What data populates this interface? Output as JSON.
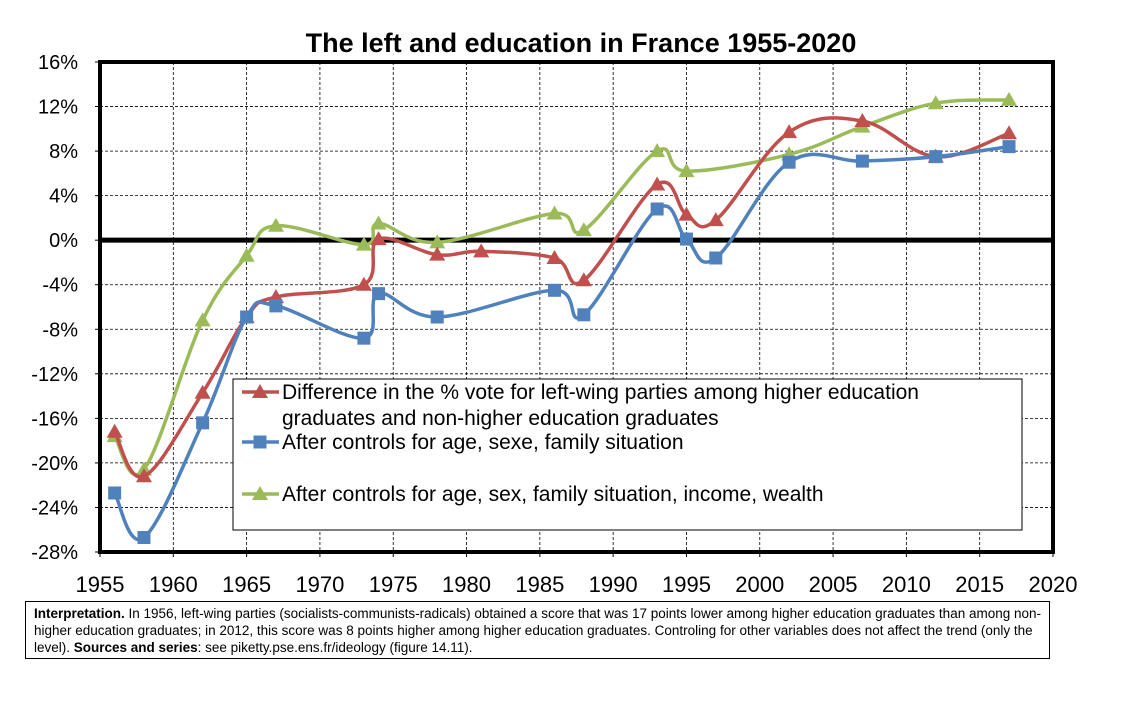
{
  "chart_data": {
    "type": "line",
    "title": "The left and education in France 1955-2020",
    "xlim": [
      1955,
      2020
    ],
    "ylim": [
      -28,
      16
    ],
    "x_ticks": [
      1955,
      1960,
      1965,
      1970,
      1975,
      1980,
      1985,
      1990,
      1995,
      2000,
      2005,
      2010,
      2015,
      2020
    ],
    "y_ticks": [
      -28,
      -24,
      -20,
      -16,
      -12,
      -8,
      -4,
      0,
      4,
      8,
      12,
      16
    ],
    "y_tick_labels": [
      "-28%",
      "-24%",
      "-20%",
      "-16%",
      "-12%",
      "-8%",
      "-4%",
      "0%",
      "4%",
      "8%",
      "12%",
      "16%"
    ],
    "x_tick_labels": [
      "1955",
      "1960",
      "1965",
      "1970",
      "1975",
      "1980",
      "1985",
      "1990",
      "1995",
      "2000",
      "2005",
      "2010",
      "2015",
      "2020"
    ],
    "grid": "dashed",
    "zero_line": true,
    "legend_position": "bottom-center",
    "series": [
      {
        "name": "Difference in the % vote for left-wing parties among higher education graduates and non-higher education graduates",
        "legend_lines": [
          "Difference in the % vote for left-wing parties among higher education",
          "graduates and non-higher education graduates"
        ],
        "color": "#C0504D",
        "marker": "triangle",
        "x": [
          1956,
          1958,
          1962,
          1965,
          1967,
          1973,
          1974,
          1978,
          1981,
          1986,
          1988,
          1993,
          1995,
          1997,
          2002,
          2007,
          2012,
          2017
        ],
        "y": [
          -17.2,
          -21.2,
          -13.7,
          -6.9,
          -5.1,
          -4.0,
          0.1,
          -1.3,
          -1.0,
          -1.6,
          -3.6,
          5.0,
          2.3,
          1.8,
          9.7,
          10.7,
          7.5,
          9.6
        ]
      },
      {
        "name": "After controls for age, sexe, family situation",
        "legend_lines": [
          "After controls for age, sexe, family situation"
        ],
        "color": "#4F81BD",
        "marker": "square",
        "x": [
          1956,
          1958,
          1962,
          1965,
          1967,
          1973,
          1974,
          1978,
          1986,
          1988,
          1993,
          1995,
          1997,
          2002,
          2007,
          2012,
          2017
        ],
        "y": [
          -22.7,
          -26.7,
          -16.4,
          -6.9,
          -5.9,
          -8.8,
          -4.8,
          -6.9,
          -4.5,
          -6.7,
          2.8,
          0.1,
          -1.6,
          7.0,
          7.1,
          7.5,
          8.4
        ]
      },
      {
        "name": "After controls for age, sex, family situation, income, wealth",
        "legend_lines": [
          "After controls for age, sex, family situation, income, wealth"
        ],
        "color": "#9BBB59",
        "marker": "triangle",
        "x": [
          1956,
          1958,
          1962,
          1965,
          1967,
          1973,
          1974,
          1978,
          1986,
          1988,
          1993,
          1995,
          2002,
          2007,
          2012,
          2017
        ],
        "y": [
          -17.6,
          -20.6,
          -7.2,
          -1.4,
          1.3,
          -0.4,
          1.5,
          -0.2,
          2.4,
          0.9,
          8.0,
          6.2,
          7.7,
          10.2,
          12.3,
          12.6
        ]
      }
    ]
  },
  "interpretation": {
    "label": "Interpretation.",
    "text_1": " In 1956, left-wing parties (socialists-communists-radicals) obtained a score that was 17 points lower among higher education graduates than among non-higher education graduates; in 2012, this score was 8 points higher among higher education graduates. Controling for other variables does not affect the trend (only the level). ",
    "sources_label": "Sources and series",
    "sources_text": ": see piketty.pse.ens.fr/ideology (figure 14.11)."
  }
}
